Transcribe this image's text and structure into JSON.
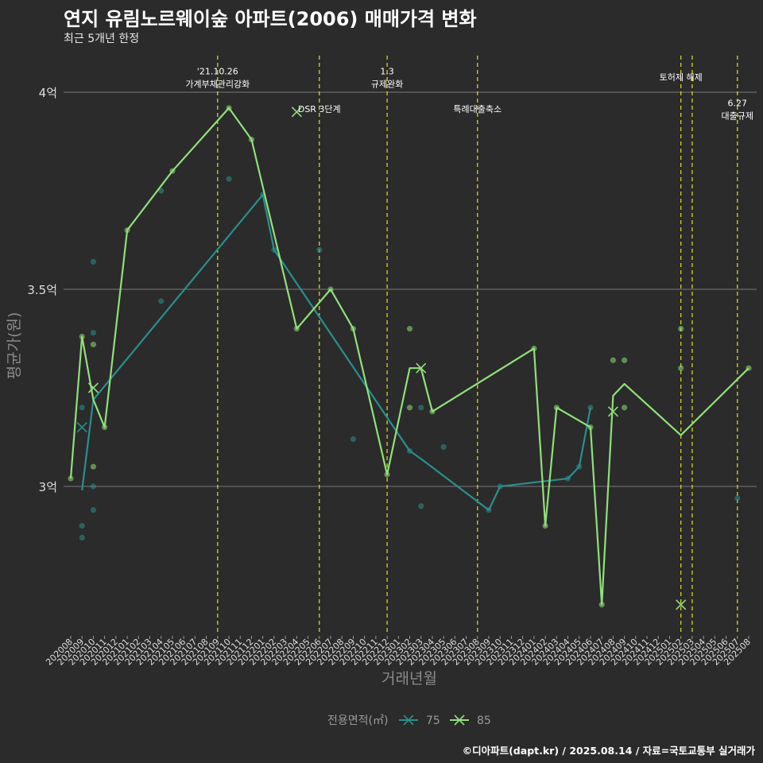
{
  "title": "연지 유림노르웨이숲 아파트(2006) 매매가격 변화",
  "subtitle": "최근 5개년 한정",
  "caption": "©디아파트(dapt.kr) / 2025.08.14 / 자료=국토교통부 실거래가",
  "chart_data": {
    "type": "line",
    "xlabel": "거래년월",
    "ylabel": "평균가(원)",
    "ylim": [
      2.65,
      4.1
    ],
    "yticks": [
      {
        "v": 3.0,
        "label": "3억"
      },
      {
        "v": 3.5,
        "label": "3.5억"
      },
      {
        "v": 4.0,
        "label": "4억"
      }
    ],
    "x_categories": [
      "202008",
      "202009",
      "202010",
      "202011",
      "202012",
      "202101",
      "202102",
      "202103",
      "202104",
      "202105",
      "202106",
      "202107",
      "202108",
      "202109",
      "202110",
      "202111",
      "202112",
      "202201",
      "202202",
      "202203",
      "202204",
      "202205",
      "202206",
      "202207",
      "202208",
      "202209",
      "202210",
      "202211",
      "202212",
      "202301",
      "202302",
      "202303",
      "202304",
      "202305",
      "202306",
      "202307",
      "202308",
      "202309",
      "202310",
      "202311",
      "202312",
      "202401",
      "202402",
      "202403",
      "202404",
      "202405",
      "202406",
      "202407",
      "202408",
      "202409",
      "202410",
      "202411",
      "202412",
      "202501",
      "202502",
      "202503",
      "202504",
      "202505",
      "202506",
      "202507",
      "202508"
    ],
    "legend_title": "전용면적(㎡)",
    "series": [
      {
        "name": "75",
        "color": "#2a8f8e",
        "line": [
          [
            1.0,
            2.99
          ],
          [
            2.0,
            3.22
          ],
          [
            17.0,
            3.74
          ],
          [
            18.0,
            3.6
          ],
          [
            30.0,
            3.09
          ],
          [
            31.0,
            3.07
          ],
          [
            37.0,
            2.94
          ],
          [
            38.0,
            3.0
          ],
          [
            44.0,
            3.02
          ],
          [
            45.0,
            3.05
          ],
          [
            46.0,
            3.2
          ]
        ],
        "points": [
          [
            1.0,
            2.87
          ],
          [
            1.0,
            2.9
          ],
          [
            1.0,
            3.2
          ],
          [
            2.0,
            2.94
          ],
          [
            2.0,
            3.0
          ],
          [
            2.0,
            3.39
          ],
          [
            2.0,
            3.57
          ],
          [
            8.0,
            3.75
          ],
          [
            8.0,
            3.47
          ],
          [
            14.0,
            3.78
          ],
          [
            17.0,
            3.74
          ],
          [
            18.0,
            3.6
          ],
          [
            22.0,
            3.6
          ],
          [
            25.0,
            3.12
          ],
          [
            30.0,
            3.09
          ],
          [
            31.0,
            3.2
          ],
          [
            31.0,
            2.95
          ],
          [
            33.0,
            3.1
          ],
          [
            37.0,
            2.94
          ],
          [
            38.0,
            3.0
          ],
          [
            44.0,
            3.02
          ],
          [
            45.0,
            3.05
          ],
          [
            46.0,
            3.2
          ],
          [
            59.0,
            2.97
          ]
        ],
        "marker_points": [
          [
            1.0,
            3.15
          ]
        ]
      },
      {
        "name": "85",
        "color": "#90e07a",
        "line": [
          [
            0.0,
            3.02
          ],
          [
            1.0,
            3.38
          ],
          [
            2.0,
            3.22
          ],
          [
            3.0,
            3.15
          ],
          [
            5.0,
            3.65
          ],
          [
            9.0,
            3.8
          ],
          [
            14.0,
            3.96
          ],
          [
            16.0,
            3.88
          ],
          [
            20.0,
            3.4
          ],
          [
            23.0,
            3.5
          ],
          [
            25.0,
            3.4
          ],
          [
            28.0,
            3.03
          ],
          [
            30.0,
            3.3
          ],
          [
            31.0,
            3.3
          ],
          [
            32.0,
            3.19
          ],
          [
            41.0,
            3.35
          ],
          [
            42.0,
            2.9
          ],
          [
            43.0,
            3.2
          ],
          [
            46.0,
            3.15
          ],
          [
            47.0,
            2.7
          ],
          [
            48.0,
            3.23
          ],
          [
            49.0,
            3.26
          ],
          [
            54.0,
            3.13
          ],
          [
            60.0,
            3.3
          ]
        ],
        "points": [
          [
            0.0,
            3.02
          ],
          [
            1.0,
            3.38
          ],
          [
            2.0,
            3.36
          ],
          [
            2.0,
            3.05
          ],
          [
            3.0,
            3.15
          ],
          [
            5.0,
            3.65
          ],
          [
            9.0,
            3.8
          ],
          [
            14.0,
            3.96
          ],
          [
            16.0,
            3.88
          ],
          [
            20.0,
            3.4
          ],
          [
            23.0,
            3.5
          ],
          [
            25.0,
            3.4
          ],
          [
            28.0,
            3.03
          ],
          [
            30.0,
            3.4
          ],
          [
            30.0,
            3.2
          ],
          [
            32.0,
            3.19
          ],
          [
            41.0,
            3.35
          ],
          [
            42.0,
            2.9
          ],
          [
            43.0,
            3.2
          ],
          [
            46.0,
            3.15
          ],
          [
            47.0,
            2.7
          ],
          [
            48.0,
            3.32
          ],
          [
            49.0,
            3.32
          ],
          [
            49.0,
            3.2
          ],
          [
            54.0,
            3.4
          ],
          [
            54.0,
            3.3
          ],
          [
            60.0,
            3.3
          ]
        ],
        "marker_points": [
          [
            2.0,
            3.25
          ],
          [
            20.0,
            3.95
          ],
          [
            31.0,
            3.3
          ],
          [
            48.0,
            3.19
          ],
          [
            54.0,
            2.7
          ]
        ]
      }
    ],
    "annotations": [
      {
        "x": 13.0,
        "lines": [
          "'21.10.26",
          "가계부채관리강화"
        ],
        "y": 4.045
      },
      {
        "x": 22.0,
        "lines": [
          "DSR 3단계"
        ],
        "y": 3.95
      },
      {
        "x": 28.0,
        "lines": [
          "1.3",
          "규제완화"
        ],
        "y": 4.045
      },
      {
        "x": 36.0,
        "lines": [
          "특례대출축소"
        ],
        "y": 3.95
      },
      {
        "x": 54.0,
        "lines": [
          "토허제 해제"
        ],
        "y": 4.03
      },
      {
        "x": 59.0,
        "lines": [
          "6.27",
          "대출규제"
        ],
        "y": 3.965
      }
    ],
    "vlines": [
      13.0,
      22.0,
      28.0,
      36.0,
      54.0,
      55.0,
      59.0
    ],
    "vline_color": "#e3e31a",
    "grid": true
  }
}
